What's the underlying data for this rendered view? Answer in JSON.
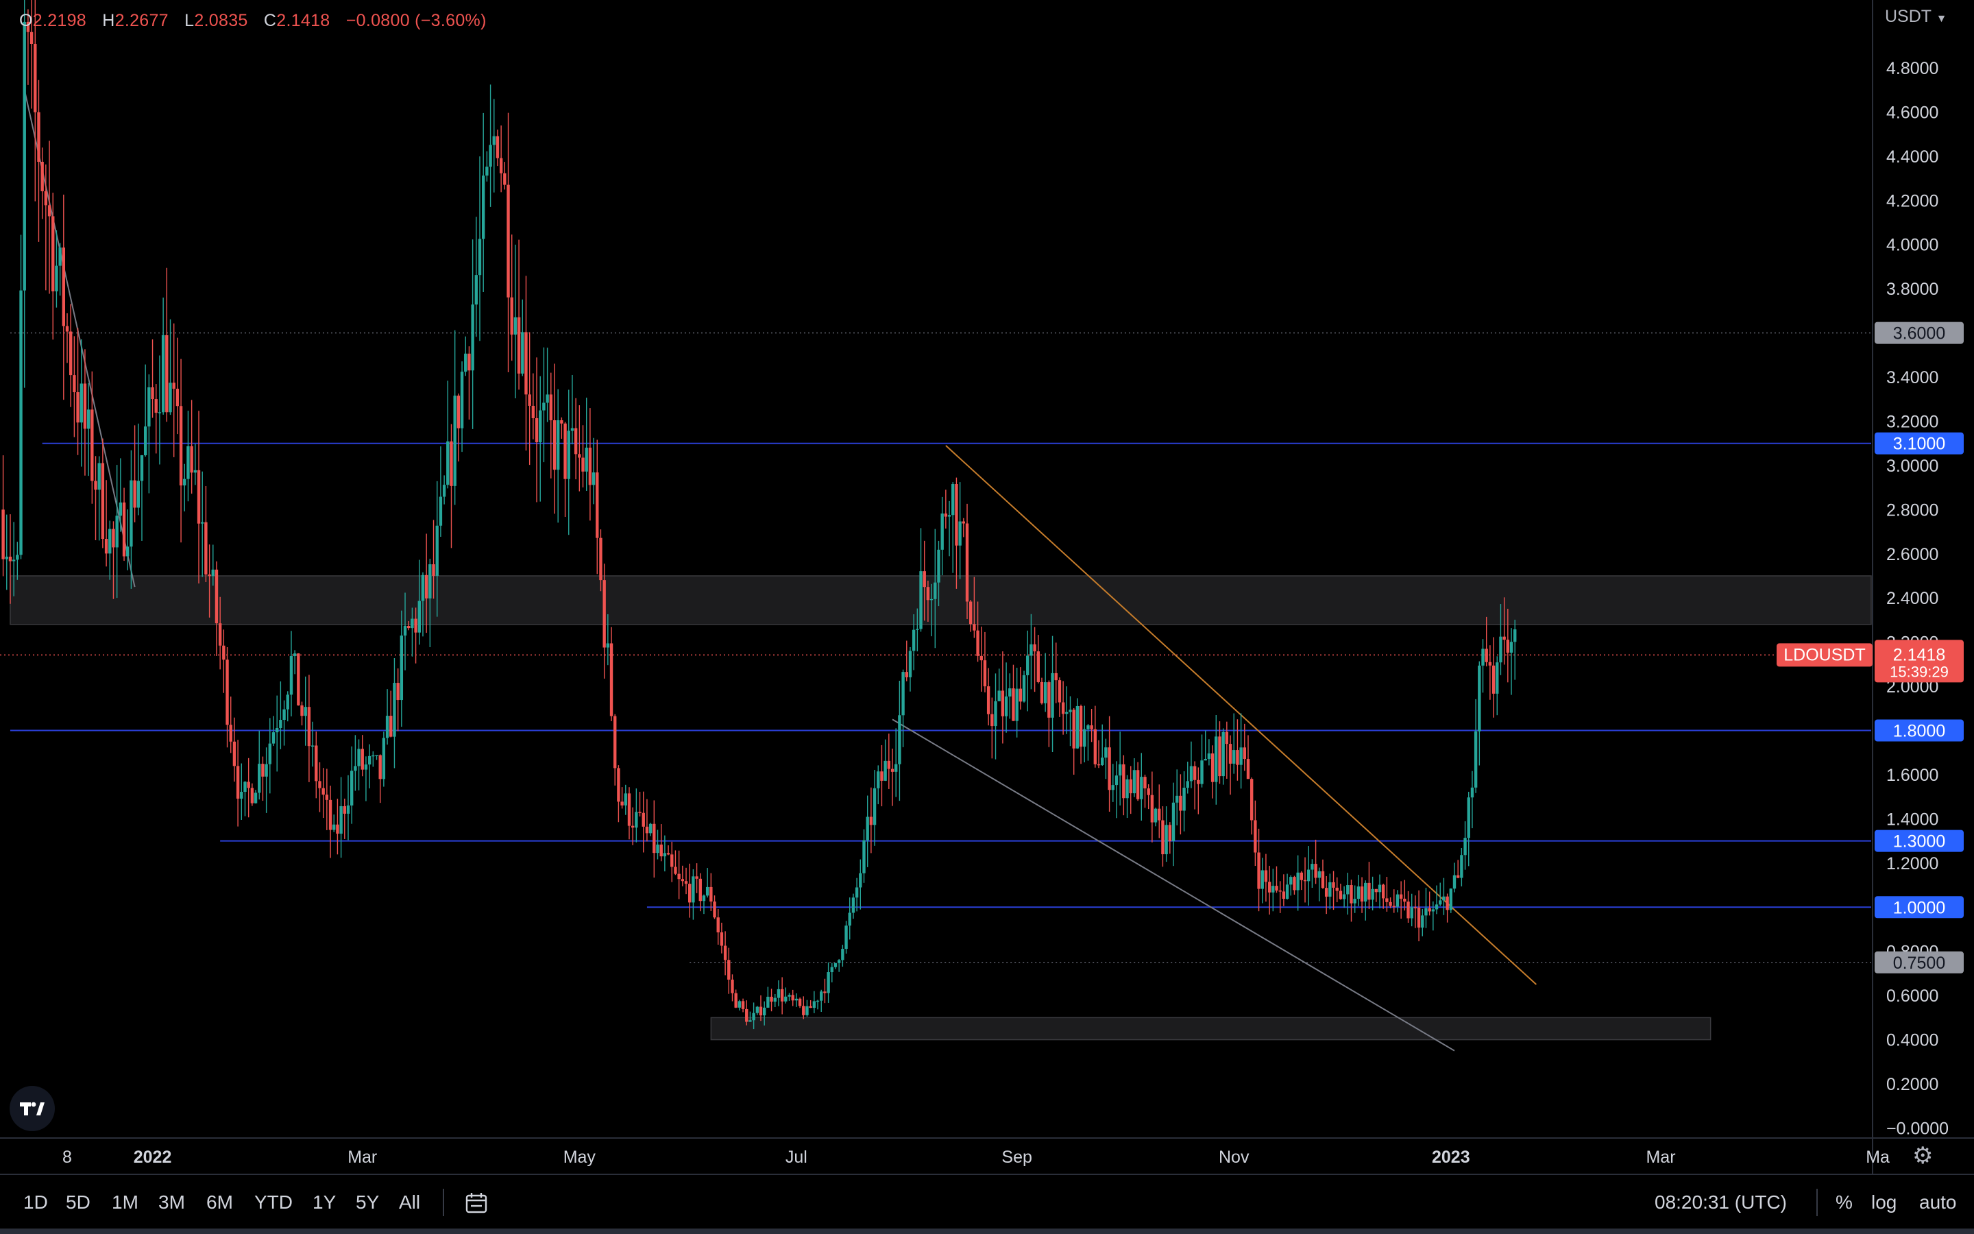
{
  "ohlc": {
    "open_key": "O",
    "open": "2.2198",
    "high_key": "H",
    "high": "2.2677",
    "low_key": "L",
    "low": "2.0835",
    "close_key": "C",
    "close": "2.1418",
    "change": "−0.0800 (−3.60%)"
  },
  "price_scale": {
    "currency": "USDT",
    "currency_icon": "chevron-down-icon"
  },
  "symbol": "LDOUSDT",
  "last_price": "2.1418",
  "countdown": "15:39:29",
  "toolbar": {
    "timeframes": [
      "1D",
      "5D",
      "1M",
      "3M",
      "6M",
      "YTD",
      "1Y",
      "5Y",
      "All"
    ],
    "date_range_icon": "calendar-range-icon",
    "clock": "08:20:31 (UTC)",
    "percent_label": "%",
    "log_label": "log",
    "auto_label": "auto"
  },
  "colors": {
    "background": "#000000",
    "up": "#26a69a",
    "down": "#ef5350",
    "level_line": "#2a3fd6",
    "level_badge": "#2962ff",
    "grey_badge": "#9598a1",
    "trendline_down": "#c77d2b",
    "trendline_support": "#787b86"
  },
  "chart_data": {
    "type": "candlestick",
    "title": "",
    "xlabel": "",
    "ylabel": "",
    "ylim": [
      -0.05,
      5.0
    ],
    "y_ticks": [
      "−0.0000",
      "0.2000",
      "0.4000",
      "0.6000",
      "0.8000",
      "1.0000",
      "1.2000",
      "1.4000",
      "1.6000",
      "1.8000",
      "2.0000",
      "2.2000",
      "2.4000",
      "2.6000",
      "2.8000",
      "3.0000",
      "3.2000",
      "3.4000",
      "3.6000",
      "3.8000",
      "4.0000",
      "4.2000",
      "4.4000",
      "4.6000",
      "4.8000"
    ],
    "x_ticks": [
      {
        "label": "8",
        "date": "2021-12-08"
      },
      {
        "label": "2022",
        "date": "2022-01-01",
        "bold": true
      },
      {
        "label": "Mar",
        "date": "2022-03-01"
      },
      {
        "label": "May",
        "date": "2022-05-01"
      },
      {
        "label": "Jul",
        "date": "2022-07-01"
      },
      {
        "label": "Sep",
        "date": "2022-09-01"
      },
      {
        "label": "Nov",
        "date": "2022-11-01"
      },
      {
        "label": "2023",
        "date": "2023-01-01",
        "bold": true
      },
      {
        "label": "Mar",
        "date": "2023-03-01"
      },
      {
        "label": "Ma",
        "date": "2023-05-01"
      }
    ],
    "horizontal_levels": [
      {
        "price": 3.1,
        "label": "3.1000",
        "style": "solid",
        "color": "#2a3fd6",
        "badge": "#2962ff",
        "start_date": "2021-12-01"
      },
      {
        "price": 1.8,
        "label": "1.8000",
        "style": "solid",
        "color": "#2a3fd6",
        "badge": "#2962ff",
        "start_date": "2021-11-22"
      },
      {
        "price": 1.3,
        "label": "1.3000",
        "style": "solid",
        "color": "#2a3fd6",
        "badge": "#2962ff",
        "start_date": "2022-01-20"
      },
      {
        "price": 1.0,
        "label": "1.0000",
        "style": "solid",
        "color": "#2a3fd6",
        "badge": "#2962ff",
        "start_date": "2022-05-20"
      },
      {
        "price": 3.6,
        "label": "3.6000",
        "style": "dotted",
        "color": "#5d606b",
        "badge": "#9598a1",
        "start_date": "2021-11-22"
      },
      {
        "price": 0.75,
        "label": "0.7500",
        "style": "dotted",
        "color": "#5d606b",
        "badge": "#9598a1",
        "start_date": "2022-06-01"
      }
    ],
    "current_price": {
      "price": 2.1418,
      "label": "2.1418",
      "countdown": "15:39:29"
    },
    "zones": [
      {
        "price_low": 2.28,
        "price_high": 2.5,
        "start_date": "2021-11-22",
        "end_date": "2023-05-10"
      },
      {
        "price_low": 0.4,
        "price_high": 0.5,
        "start_date": "2022-06-07",
        "end_date": "2023-03-15"
      }
    ],
    "trendlines": [
      {
        "from": [
          "2022-08-12",
          3.09
        ],
        "to": [
          "2023-01-25",
          0.65
        ],
        "color": "#c77d2b"
      },
      {
        "from": [
          "2022-07-28",
          1.85
        ],
        "to": [
          "2023-01-02",
          0.35
        ],
        "color": "#787b86"
      },
      {
        "from": [
          "2021-11-26",
          4.7
        ],
        "to": [
          "2021-12-27",
          2.45
        ],
        "color": "#787b86"
      }
    ],
    "anchors": [
      [
        "2021-11-20",
        2.8
      ],
      [
        "2021-11-25",
        2.5
      ],
      [
        "2021-11-27",
        4.9
      ],
      [
        "2021-12-04",
        4.1
      ],
      [
        "2021-12-12",
        3.3
      ],
      [
        "2021-12-22",
        2.6
      ],
      [
        "2021-12-28",
        2.9
      ],
      [
        "2022-01-05",
        3.5
      ],
      [
        "2022-01-10",
        3.0
      ],
      [
        "2022-01-14",
        2.9
      ],
      [
        "2022-01-20",
        2.3
      ],
      [
        "2022-01-27",
        1.45
      ],
      [
        "2022-02-03",
        1.7
      ],
      [
        "2022-02-10",
        2.1
      ],
      [
        "2022-02-17",
        1.6
      ],
      [
        "2022-02-22",
        1.3
      ],
      [
        "2022-02-28",
        1.65
      ],
      [
        "2022-03-07",
        1.6
      ],
      [
        "2022-03-14",
        2.2
      ],
      [
        "2022-03-22",
        2.5
      ],
      [
        "2022-03-30",
        3.4
      ],
      [
        "2022-04-06",
        4.2
      ],
      [
        "2022-04-09",
        4.6
      ],
      [
        "2022-04-13",
        3.8
      ],
      [
        "2022-04-20",
        3.2
      ],
      [
        "2022-04-28",
        3.05
      ],
      [
        "2022-05-05",
        3.0
      ],
      [
        "2022-05-10",
        2.1
      ],
      [
        "2022-05-13",
        1.5
      ],
      [
        "2022-05-22",
        1.3
      ],
      [
        "2022-05-30",
        1.1
      ],
      [
        "2022-06-08",
        1.05
      ],
      [
        "2022-06-14",
        0.6
      ],
      [
        "2022-06-19",
        0.48
      ],
      [
        "2022-06-26",
        0.62
      ],
      [
        "2022-07-05",
        0.52
      ],
      [
        "2022-07-12",
        0.7
      ],
      [
        "2022-07-18",
        1.0
      ],
      [
        "2022-07-24",
        1.5
      ],
      [
        "2022-07-30",
        1.75
      ],
      [
        "2022-08-05",
        2.4
      ],
      [
        "2022-08-11",
        2.6
      ],
      [
        "2022-08-14",
        2.95
      ],
      [
        "2022-08-18",
        2.6
      ],
      [
        "2022-08-24",
        1.9
      ],
      [
        "2022-08-30",
        1.9
      ],
      [
        "2022-09-06",
        2.1
      ],
      [
        "2022-09-14",
        1.9
      ],
      [
        "2022-09-22",
        1.75
      ],
      [
        "2022-09-29",
        1.6
      ],
      [
        "2022-10-06",
        1.55
      ],
      [
        "2022-10-13",
        1.3
      ],
      [
        "2022-10-22",
        1.6
      ],
      [
        "2022-10-30",
        1.7
      ],
      [
        "2022-11-04",
        1.75
      ],
      [
        "2022-11-09",
        1.15
      ],
      [
        "2022-11-14",
        1.05
      ],
      [
        "2022-11-22",
        1.18
      ],
      [
        "2022-11-30",
        1.05
      ],
      [
        "2022-12-10",
        1.08
      ],
      [
        "2022-12-18",
        1.0
      ],
      [
        "2022-12-25",
        0.95
      ],
      [
        "2022-12-30",
        1.0
      ],
      [
        "2023-01-04",
        1.12
      ],
      [
        "2023-01-08",
        1.55
      ],
      [
        "2023-01-11",
        2.2
      ],
      [
        "2023-01-14",
        1.9
      ],
      [
        "2023-01-17",
        2.25
      ],
      [
        "2023-01-20",
        2.14
      ]
    ]
  }
}
